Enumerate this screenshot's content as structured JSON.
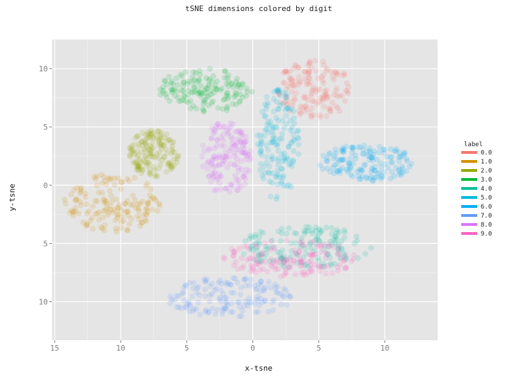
{
  "chart_data": {
    "type": "scatter",
    "title": "tSNE dimensions colored by digit",
    "xlabel": "x-tsne",
    "ylabel": "y-tsne",
    "xlim": [
      -15.2,
      14
    ],
    "ylim": [
      -13.3,
      12.5
    ],
    "x_ticks": [
      -15,
      -10,
      -5,
      0,
      5,
      10
    ],
    "x_tick_labels": [
      "15",
      "10",
      "5",
      "0",
      "5",
      "10"
    ],
    "y_ticks": [
      10,
      5,
      0,
      -5,
      -10
    ],
    "y_tick_labels": [
      "10",
      "5",
      "0",
      "5",
      "10"
    ],
    "grid": true,
    "legend": {
      "title": "label",
      "position": "right",
      "entries": [
        "0.0",
        "1.0",
        "2.0",
        "3.0",
        "4.0",
        "5.0",
        "6.0",
        "7.0",
        "8.0",
        "9.0"
      ]
    },
    "series": [
      {
        "name": "0.0",
        "color": "#F8766D",
        "cluster": {
          "cx": 4.7,
          "cy": 8.2,
          "rx": 2.9,
          "ry": 2.6
        }
      },
      {
        "name": "1.0",
        "color": "#D39200",
        "cluster": {
          "cx": -10.5,
          "cy": -1.5,
          "rx": 3.8,
          "ry": 2.5
        }
      },
      {
        "name": "2.0",
        "color": "#93AA00",
        "cluster": {
          "cx": -7.5,
          "cy": 2.7,
          "rx": 1.9,
          "ry": 2.0
        }
      },
      {
        "name": "3.0",
        "color": "#00BA38",
        "cluster": {
          "cx": -3.6,
          "cy": 8.1,
          "rx": 3.6,
          "ry": 1.9
        }
      },
      {
        "name": "4.0",
        "color": "#00C19F",
        "cluster": {
          "cx": 4.0,
          "cy": -5.3,
          "rx": 5.0,
          "ry": 1.8
        }
      },
      {
        "name": "5.0",
        "color": "#00B9E3",
        "cluster": {
          "cx": 1.9,
          "cy": 3.5,
          "rx": 1.6,
          "ry": 4.8
        }
      },
      {
        "name": "6.0",
        "color": "#00ADFA",
        "cluster": {
          "cx": 8.6,
          "cy": 1.9,
          "rx": 3.6,
          "ry": 1.6
        }
      },
      {
        "name": "7.0",
        "color": "#619CFF",
        "cluster": {
          "cx": -1.8,
          "cy": -9.6,
          "rx": 4.8,
          "ry": 1.7
        }
      },
      {
        "name": "8.0",
        "color": "#DB72FB",
        "cluster": {
          "cx": -2.0,
          "cy": 2.2,
          "rx": 1.9,
          "ry": 3.3
        }
      },
      {
        "name": "9.0",
        "color": "#FF61C3",
        "cluster": {
          "cx": 2.8,
          "cy": -6.3,
          "rx": 5.2,
          "ry": 1.6
        }
      }
    ]
  }
}
